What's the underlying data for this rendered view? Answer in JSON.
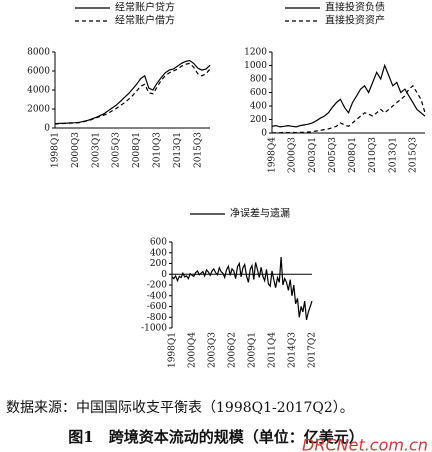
{
  "chart_data": [
    {
      "type": "line",
      "legend": "top",
      "ylim": [
        0,
        8000
      ],
      "yticks": [
        0,
        2000,
        4000,
        6000,
        8000
      ],
      "categories": [
        "1998Q1",
        null,
        null,
        null,
        null,
        "2000Q3",
        null,
        null,
        null,
        null,
        "2003Q1",
        null,
        null,
        null,
        null,
        "2005Q3",
        null,
        null,
        null,
        null,
        "2008Q1",
        null,
        null,
        null,
        null,
        "2010Q3",
        null,
        null,
        null,
        null,
        "2013Q1",
        null,
        null,
        null,
        null,
        "2015Q3",
        null,
        null,
        null
      ],
      "series": [
        {
          "name": "经常账户贷方",
          "color": "#000000",
          "dash": false,
          "values": [
            450,
            480,
            500,
            520,
            550,
            560,
            600,
            700,
            800,
            950,
            1100,
            1300,
            1500,
            1800,
            2100,
            2400,
            2800,
            3200,
            3600,
            4100,
            4600,
            5200,
            5500,
            4200,
            4000,
            4700,
            5300,
            5800,
            6100,
            6200,
            6500,
            6800,
            7000,
            7100,
            6800,
            6300,
            6100,
            6200,
            6600
          ]
        },
        {
          "name": "经常账户借方",
          "color": "#000000",
          "dash": true,
          "values": [
            420,
            450,
            470,
            490,
            520,
            530,
            570,
            660,
            760,
            900,
            1050,
            1200,
            1350,
            1550,
            1800,
            2050,
            2350,
            2650,
            3000,
            3400,
            3900,
            4400,
            4600,
            3700,
            3600,
            4300,
            5000,
            5500,
            5800,
            6000,
            6200,
            6500,
            6700,
            6800,
            6400,
            5700,
            5500,
            5700,
            6200
          ]
        }
      ]
    },
    {
      "type": "line",
      "legend": "top",
      "ylim": [
        0,
        1200
      ],
      "yticks": [
        0,
        200,
        400,
        600,
        800,
        1000,
        1200
      ],
      "categories": [
        "1998Q4",
        null,
        null,
        null,
        null,
        "2000Q3",
        null,
        null,
        null,
        null,
        "2003Q1",
        null,
        null,
        null,
        null,
        "2005Q3",
        null,
        null,
        null,
        null,
        "2008Q1",
        null,
        null,
        null,
        null,
        "2010Q3",
        null,
        null,
        null,
        null,
        "2013Q1",
        null,
        null,
        null,
        null,
        "2015Q3",
        null,
        null,
        null
      ],
      "series": [
        {
          "name": "直接投资负债",
          "color": "#000000",
          "dash": false,
          "values": [
            100,
            110,
            90,
            100,
            110,
            100,
            90,
            110,
            120,
            130,
            150,
            180,
            220,
            250,
            300,
            380,
            450,
            500,
            380,
            300,
            450,
            550,
            650,
            700,
            600,
            750,
            900,
            800,
            1000,
            850,
            700,
            750,
            600,
            650,
            550,
            450,
            350,
            300,
            250
          ]
        },
        {
          "name": "直接投资资产",
          "color": "#000000",
          "dash": true,
          "values": [
            0,
            5,
            5,
            10,
            5,
            10,
            5,
            10,
            10,
            15,
            20,
            30,
            40,
            50,
            60,
            80,
            100,
            150,
            120,
            100,
            150,
            200,
            250,
            300,
            280,
            250,
            300,
            350,
            300,
            350,
            400,
            450,
            500,
            550,
            650,
            700,
            600,
            500,
            300
          ]
        }
      ]
    },
    {
      "type": "line",
      "legend": "top",
      "ylim": [
        -1000,
        600
      ],
      "yticks": [
        -1000,
        -800,
        -600,
        -400,
        -200,
        0,
        200,
        400,
        600
      ],
      "categories": [
        "1998Q1",
        null,
        null,
        null,
        null,
        null,
        null,
        null,
        null,
        null,
        null,
        "2000Q4",
        null,
        null,
        null,
        null,
        null,
        null,
        null,
        null,
        null,
        null,
        "2003Q3",
        null,
        null,
        null,
        null,
        null,
        null,
        null,
        null,
        null,
        null,
        "2006Q2",
        null,
        null,
        null,
        null,
        null,
        null,
        null,
        null,
        null,
        null,
        "2009Q1",
        null,
        null,
        null,
        null,
        null,
        null,
        null,
        null,
        null,
        null,
        "2011Q4",
        null,
        null,
        null,
        null,
        null,
        null,
        null,
        null,
        null,
        null,
        "2014Q3",
        null,
        null,
        null,
        null,
        null,
        null,
        null,
        null,
        null,
        null,
        "2017Q2"
      ],
      "series": [
        {
          "name": "净误差与遗漏",
          "color": "#000000",
          "dash": false,
          "values": [
            -50,
            -80,
            -30,
            -120,
            -40,
            -60,
            20,
            -50,
            -30,
            -80,
            10,
            -20,
            -40,
            30,
            60,
            -10,
            20,
            50,
            -30,
            80,
            40,
            -20,
            60,
            100,
            30,
            -10,
            120,
            50,
            20,
            -60,
            80,
            150,
            -20,
            100,
            60,
            -80,
            140,
            200,
            -50,
            120,
            180,
            -30,
            -150,
            90,
            160,
            -100,
            220,
            80,
            -60,
            130,
            -40,
            -120,
            90,
            -180,
            -220,
            60,
            -100,
            -250,
            -60,
            -150,
            320,
            -200,
            -80,
            -150,
            -300,
            -100,
            -400,
            -200,
            -550,
            -450,
            -800,
            -600,
            -700,
            -500,
            -850,
            -700,
            -600,
            -500
          ]
        }
      ]
    }
  ],
  "source": "数据来源：中国国际收支平衡表（1998Q1-2017Q2）。",
  "caption": "图1　跨境资本流动的规模（单位：亿美元）",
  "watermark": "DRCNet.com.cn"
}
